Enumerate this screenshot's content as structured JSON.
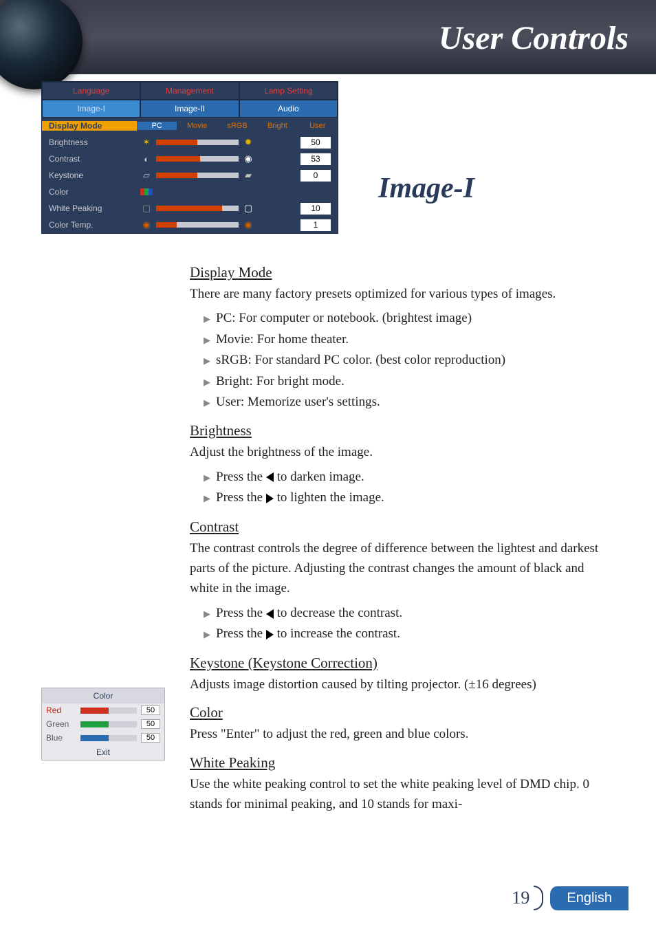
{
  "header": {
    "title": "User Controls"
  },
  "section": {
    "title": "Image-I"
  },
  "menu": {
    "tabs_top": [
      "Language",
      "Management",
      "Lamp Setting"
    ],
    "tabs_bot": [
      "Image-I",
      "Image-II",
      "Audio"
    ],
    "active_tab": "Image-I",
    "rows": [
      {
        "label": "Display Mode",
        "kind": "mode",
        "modes": [
          "PC",
          "Movie",
          "sRGB",
          "Bright",
          "User"
        ],
        "active": "PC"
      },
      {
        "label": "Brightness",
        "kind": "slider",
        "icon_l": "sun-dim",
        "icon_r": "sun-bright",
        "fill": 50,
        "value": "50"
      },
      {
        "label": "Contrast",
        "kind": "slider",
        "icon_l": "circle-half",
        "icon_r": "circle-full",
        "fill": 53,
        "value": "53"
      },
      {
        "label": "Keystone",
        "kind": "slider",
        "icon_l": "trap-up",
        "icon_r": "trap-down",
        "fill": 50,
        "value": "0"
      },
      {
        "label": "Color",
        "kind": "icon-only",
        "icon_l": "rgb"
      },
      {
        "label": "White Peaking",
        "kind": "slider",
        "icon_l": "rect-dim",
        "icon_r": "rect-bright",
        "fill": 80,
        "value": "10"
      },
      {
        "label": "Color Temp.",
        "kind": "slider",
        "icon_l": "temp-low",
        "icon_r": "temp-high",
        "fill": 25,
        "value": "1"
      }
    ]
  },
  "content": {
    "display_mode": {
      "head": "Display Mode",
      "intro": "There are many factory presets optimized for various types of images.",
      "items": [
        "PC: For computer or notebook. (brightest image)",
        "Movie: For home theater.",
        "sRGB: For standard PC color. (best color reproduction)",
        "Bright: For bright mode.",
        "User: Memorize user's settings."
      ]
    },
    "brightness": {
      "head": "Brightness",
      "intro": "Adjust the brightness of the image.",
      "left": "to darken image.",
      "right": "to lighten the image."
    },
    "contrast": {
      "head": "Contrast",
      "intro": "The contrast controls the degree of difference between the lightest and darkest parts of the picture. Adjusting the contrast changes the amount of black and white in the image.",
      "left": "to decrease the contrast.",
      "right": "to increase the contrast."
    },
    "keystone": {
      "head": "Keystone (Keystone Correction)",
      "intro": "Adjusts image distortion caused by tilting projector. (±16 degrees)"
    },
    "color": {
      "head": "Color",
      "intro": "Press \"Enter\" to adjust the red, green and blue colors."
    },
    "white_peaking": {
      "head": "White Peaking",
      "intro": "Use the white peaking control to set the white peaking level of DMD chip. 0 stands for minimal peaking, and 10 stands for maxi-"
    },
    "press_the": "Press the"
  },
  "color_panel": {
    "title": "Color",
    "rows": [
      {
        "name": "Red",
        "color": "#d03020",
        "name_color": "#c02010",
        "value": "50"
      },
      {
        "name": "Green",
        "color": "#20a040",
        "name_color": "#555",
        "value": "50"
      },
      {
        "name": "Blue",
        "color": "#2b6bb0",
        "name_color": "#555",
        "value": "50"
      }
    ],
    "exit": "Exit"
  },
  "footer": {
    "page": "19",
    "lang": "English"
  }
}
